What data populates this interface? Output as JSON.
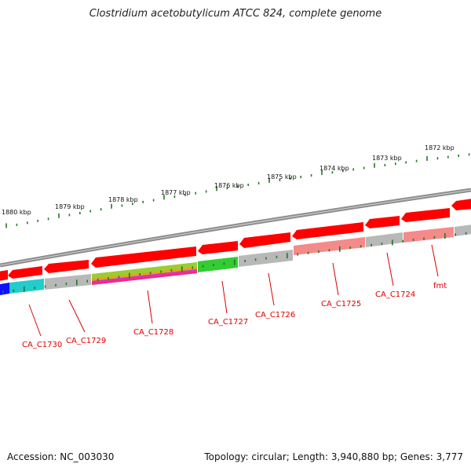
{
  "title": "Clostridium acetobutylicum ATCC 824, complete genome",
  "footer": {
    "accession": "Accession: NC_003030",
    "topology": "Topology: circular; Length: 3,940,880 bp; Genes: 3,777"
  },
  "colors": {
    "backbone": "#8c8c8c",
    "gene_red": "#ff0000",
    "gene_pink": "#f48a8a",
    "gene_grey": "#b8b8b8",
    "ticks": "#1f7a1f",
    "label": "#dd0000"
  },
  "scale_labels": [
    "1880 kbp",
    "1879 kbp",
    "1878 kbp",
    "1877 kbp",
    "1876 kbp",
    "1875 kbp",
    "1874 kbp",
    "1873 kbp",
    "1872 kbp"
  ],
  "gene_labels": [
    "CA_C1730",
    "CA_C1729",
    "CA_C1728",
    "CA_C1727",
    "CA_C1726",
    "CA_C1725",
    "CA_C1724",
    "fmt"
  ]
}
